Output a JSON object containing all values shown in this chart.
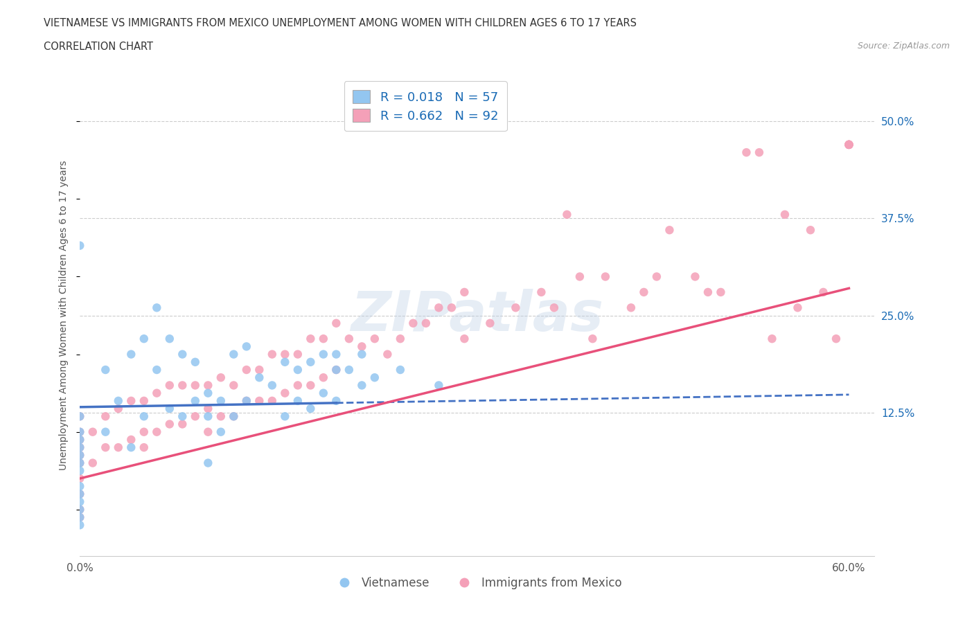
{
  "title": "VIETNAMESE VS IMMIGRANTS FROM MEXICO UNEMPLOYMENT AMONG WOMEN WITH CHILDREN AGES 6 TO 17 YEARS",
  "subtitle": "CORRELATION CHART",
  "source": "Source: ZipAtlas.com",
  "ylabel": "Unemployment Among Women with Children Ages 6 to 17 years",
  "xlim": [
    0.0,
    0.62
  ],
  "ylim": [
    -0.06,
    0.56
  ],
  "xticks": [
    0.0,
    0.1,
    0.2,
    0.3,
    0.4,
    0.5,
    0.6
  ],
  "xticklabels": [
    "0.0%",
    "",
    "",
    "",
    "",
    "",
    "60.0%"
  ],
  "yticks_right": [
    0.125,
    0.25,
    0.375,
    0.5
  ],
  "ytick_labels_right": [
    "12.5%",
    "25.0%",
    "37.5%",
    "50.0%"
  ],
  "grid_color": "#cccccc",
  "background_color": "#ffffff",
  "legend_R1": "R = 0.018",
  "legend_N1": "N = 57",
  "legend_R2": "R = 0.662",
  "legend_N2": "N = 92",
  "color_vietnamese": "#93c6f0",
  "color_mexico": "#f4a0b8",
  "trendline_color_vietnamese": "#4472c4",
  "trendline_color_mexico": "#e8507a",
  "legend_label_vietnamese": "Vietnamese",
  "legend_label_mexico": "Immigrants from Mexico",
  "legend_text_color": "#1a6bb5",
  "title_color": "#333333",
  "source_color": "#999999",
  "watermark_color": "#b8cce4",
  "viet_trendline_x_end": 0.2,
  "viet_trendline_y_start": 0.132,
  "viet_trendline_y_end": 0.148,
  "mex_trendline_x_start": 0.0,
  "mex_trendline_y_start": 0.04,
  "mex_trendline_x_end": 0.6,
  "mex_trendline_y_end": 0.285,
  "vietnamese_x": [
    0.0,
    0.0,
    0.0,
    0.0,
    0.0,
    0.0,
    0.0,
    0.0,
    0.0,
    0.0,
    0.0,
    0.0,
    0.0,
    0.0,
    0.02,
    0.02,
    0.03,
    0.04,
    0.04,
    0.05,
    0.05,
    0.06,
    0.06,
    0.07,
    0.07,
    0.08,
    0.08,
    0.09,
    0.09,
    0.1,
    0.1,
    0.1,
    0.11,
    0.11,
    0.12,
    0.12,
    0.13,
    0.13,
    0.14,
    0.15,
    0.16,
    0.16,
    0.17,
    0.17,
    0.18,
    0.18,
    0.19,
    0.19,
    0.2,
    0.2,
    0.2,
    0.21,
    0.22,
    0.22,
    0.23,
    0.25,
    0.28
  ],
  "vietnamese_y": [
    -0.02,
    -0.01,
    0.0,
    0.01,
    0.02,
    0.03,
    0.05,
    0.06,
    0.07,
    0.08,
    0.09,
    0.1,
    0.12,
    0.34,
    0.1,
    0.18,
    0.14,
    0.08,
    0.2,
    0.12,
    0.22,
    0.18,
    0.26,
    0.13,
    0.22,
    0.12,
    0.2,
    0.14,
    0.19,
    0.06,
    0.12,
    0.15,
    0.1,
    0.14,
    0.12,
    0.2,
    0.14,
    0.21,
    0.17,
    0.16,
    0.12,
    0.19,
    0.14,
    0.18,
    0.13,
    0.19,
    0.15,
    0.2,
    0.14,
    0.18,
    0.2,
    0.18,
    0.16,
    0.2,
    0.17,
    0.18,
    0.16
  ],
  "mexico_x": [
    0.0,
    0.0,
    0.0,
    0.0,
    0.0,
    0.0,
    0.0,
    0.0,
    0.0,
    0.0,
    0.01,
    0.01,
    0.02,
    0.02,
    0.03,
    0.03,
    0.04,
    0.04,
    0.05,
    0.05,
    0.05,
    0.06,
    0.06,
    0.07,
    0.07,
    0.08,
    0.08,
    0.09,
    0.09,
    0.1,
    0.1,
    0.1,
    0.11,
    0.11,
    0.12,
    0.12,
    0.13,
    0.13,
    0.14,
    0.14,
    0.15,
    0.15,
    0.16,
    0.16,
    0.17,
    0.17,
    0.18,
    0.18,
    0.19,
    0.19,
    0.2,
    0.2,
    0.21,
    0.22,
    0.23,
    0.24,
    0.25,
    0.26,
    0.27,
    0.28,
    0.29,
    0.3,
    0.3,
    0.32,
    0.34,
    0.36,
    0.37,
    0.38,
    0.39,
    0.4,
    0.41,
    0.43,
    0.44,
    0.45,
    0.46,
    0.48,
    0.49,
    0.5,
    0.52,
    0.53,
    0.54,
    0.55,
    0.56,
    0.57,
    0.58,
    0.59,
    0.6,
    0.6,
    0.6,
    0.6,
    0.6,
    0.6
  ],
  "mexico_y": [
    -0.01,
    0.0,
    0.02,
    0.04,
    0.06,
    0.07,
    0.08,
    0.09,
    0.1,
    0.12,
    0.06,
    0.1,
    0.08,
    0.12,
    0.08,
    0.13,
    0.09,
    0.14,
    0.1,
    0.14,
    0.08,
    0.1,
    0.15,
    0.11,
    0.16,
    0.11,
    0.16,
    0.12,
    0.16,
    0.1,
    0.13,
    0.16,
    0.12,
    0.17,
    0.12,
    0.16,
    0.14,
    0.18,
    0.14,
    0.18,
    0.14,
    0.2,
    0.15,
    0.2,
    0.16,
    0.2,
    0.16,
    0.22,
    0.17,
    0.22,
    0.18,
    0.24,
    0.22,
    0.21,
    0.22,
    0.2,
    0.22,
    0.24,
    0.24,
    0.26,
    0.26,
    0.22,
    0.28,
    0.24,
    0.26,
    0.28,
    0.26,
    0.38,
    0.3,
    0.22,
    0.3,
    0.26,
    0.28,
    0.3,
    0.36,
    0.3,
    0.28,
    0.28,
    0.46,
    0.46,
    0.22,
    0.38,
    0.26,
    0.36,
    0.28,
    0.22,
    0.47,
    0.47,
    0.47,
    0.47,
    0.47,
    0.47
  ]
}
